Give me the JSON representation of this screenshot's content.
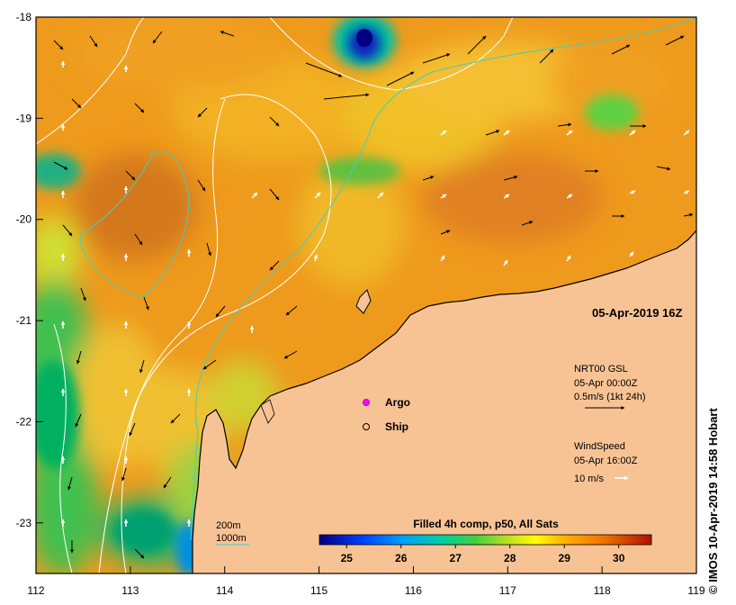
{
  "map": {
    "date_label": "05-Apr-2019 16Z",
    "lon_ticks": [
      "112",
      "113",
      "114",
      "115",
      "116",
      "117",
      "118",
      "119"
    ],
    "lat_ticks": [
      "-18",
      "-19",
      "-20",
      "-21",
      "-22",
      "-23"
    ],
    "lon_range": [
      112,
      119
    ],
    "lat_range": [
      -23.5,
      -18
    ],
    "side_credit": "© IMOS 10-Apr-2019 14:58 Hobart"
  },
  "legend": {
    "argo_label": "Argo",
    "ship_label": "Ship",
    "current_title": "NRT00 GSL",
    "current_time": "05-Apr 00:00Z",
    "current_scale": "0.5m/s (1kt 24h)",
    "wind_title": "WindSpeed",
    "wind_time": "05-Apr 16:00Z",
    "wind_scale": "10 m/s",
    "isobath_200": "200m",
    "isobath_1000": "1000m",
    "colorbar_title": "Filled 4h comp, p50, All Sats",
    "colorbar_ticks": [
      "25",
      "26",
      "27",
      "28",
      "29",
      "30"
    ],
    "colorbar_range": [
      24.5,
      30.6
    ]
  },
  "colors": {
    "land": "#f8c394",
    "isobath_200": "#ffffff",
    "isobath_1000": "#40d0c0",
    "argo": "#ff00ff"
  }
}
